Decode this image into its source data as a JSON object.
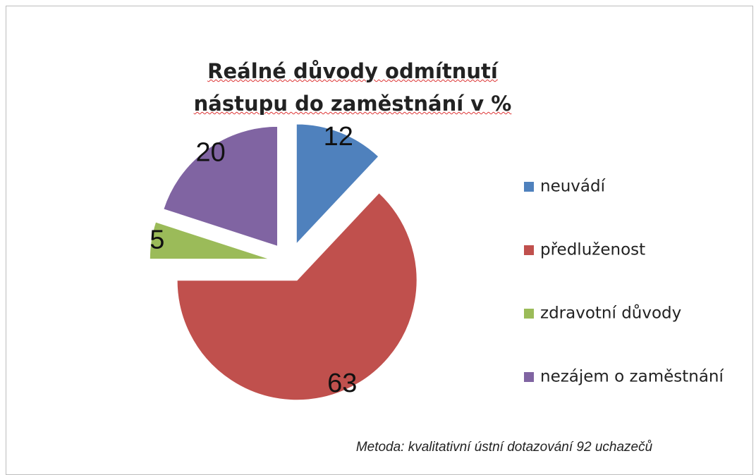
{
  "chart_data": {
    "type": "pie",
    "title": "Reálné důvody odmítnutí nástupu do zaměstnání v %",
    "categories": [
      "neuvádí",
      "předluženost",
      "zdravotní důvody",
      "nezájem o zaměstnání"
    ],
    "values": [
      12,
      63,
      5,
      20
    ],
    "colors": [
      "#4f81bd",
      "#c0504d",
      "#9bbb59",
      "#8064a2"
    ],
    "note": "Metoda: kvalitativní ústní dotazování 92 uchazečů",
    "legend": "right"
  }
}
